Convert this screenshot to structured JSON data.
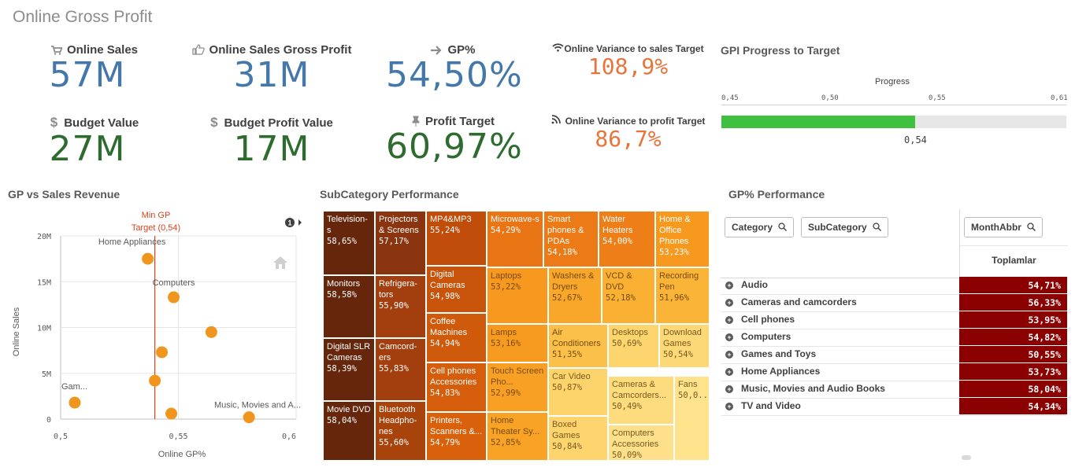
{
  "page_title": "Online Gross Profit",
  "kpis": [
    {
      "label": "Online Sales",
      "value": "57M",
      "icon": "cart-icon",
      "color": "#4477aa"
    },
    {
      "label": "Online Sales Gross Profit",
      "value": "31M",
      "icon": "thumbs-up-icon",
      "color": "#4477aa"
    },
    {
      "label": "GP%",
      "value": "54,50%",
      "icon": "arrow-right-icon",
      "color": "#4477aa"
    },
    {
      "label": "Budget Value",
      "value": "27M",
      "icon": "dollar-icon",
      "color": "#2e6b2e"
    },
    {
      "label": "Budget Profit Value",
      "value": "17M",
      "icon": "dollar-icon",
      "color": "#2e6b2e"
    },
    {
      "label": "Profit Target",
      "value": "60,97%",
      "icon": "pin-icon",
      "color": "#2e6b2e"
    }
  ],
  "variance": [
    {
      "label": "Online Variance to sales Target",
      "value": "108,9%",
      "icon": "wifi-icon"
    },
    {
      "label": "Online Variance to profit Target",
      "value": "86,7%",
      "icon": "rss-icon"
    }
  ],
  "gpi": {
    "title": "GPI Progress to Target",
    "legend": "Progress",
    "ticks": [
      "0,45",
      "0,50",
      "0,55",
      "0,61"
    ],
    "range": [
      0.45,
      0.61
    ],
    "value": 0.54,
    "value_label": "0,54",
    "bar_color": "#40c040"
  },
  "scatter": {
    "title": "GP vs Sales Revenue",
    "ref_line_label_1": "Min GP",
    "ref_line_label_2": "Target (0,54)",
    "info_badge": "1",
    "x_axis_title": "Online GP%",
    "y_axis_title": "Online Sales",
    "x_ticks": [
      "0,5",
      "0,55",
      "0,6"
    ],
    "y_ticks": [
      "0",
      "5M",
      "10M",
      "15M",
      "20M"
    ]
  },
  "chart_data": {
    "type": "scatter",
    "title": "GP vs Sales Revenue",
    "xlabel": "Online GP%",
    "ylabel": "Online Sales",
    "xlim": [
      0.5,
      0.6
    ],
    "ylim": [
      0,
      20000000
    ],
    "reference_line": {
      "x": 0.54,
      "label": "Min GP Target (0,54)"
    },
    "points": [
      {
        "label": "Home Appliances",
        "x": 0.537,
        "y": 17500000
      },
      {
        "label": "Computers",
        "x": 0.548,
        "y": 13300000
      },
      {
        "label": "",
        "x": 0.564,
        "y": 9500000
      },
      {
        "label": "",
        "x": 0.543,
        "y": 7300000
      },
      {
        "label": "Gam...",
        "x": 0.506,
        "y": 1800000
      },
      {
        "label": "",
        "x": 0.54,
        "y": 4200000
      },
      {
        "label": "",
        "x": 0.547,
        "y": 600000
      },
      {
        "label": "Music, Movies and A...",
        "x": 0.58,
        "y": 200000
      }
    ],
    "point_color": "#f0961e"
  },
  "treemap": {
    "title": "SubCategory Performance",
    "cells": [
      {
        "label": "Television-s",
        "value": "58,65%",
        "bg": "#66260c",
        "fg": "#ffffff"
      },
      {
        "label": "Monitors",
        "value": "58,58%",
        "bg": "#66260c",
        "fg": "#ffffff"
      },
      {
        "label": "Digital SLR Cameras",
        "value": "58,39%",
        "bg": "#66260c",
        "fg": "#ffffff"
      },
      {
        "label": "Movie DVD",
        "value": "58,04%",
        "bg": "#66260c",
        "fg": "#ffffff"
      },
      {
        "label": "Projectors & Screens",
        "value": "57,17%",
        "bg": "#8a3410",
        "fg": "#ffffff"
      },
      {
        "label": "Refrigera-tors",
        "value": "55,90%",
        "bg": "#a33f0e",
        "fg": "#ffffff"
      },
      {
        "label": "Camcord-ers",
        "value": "55,83%",
        "bg": "#a33f0e",
        "fg": "#ffffff"
      },
      {
        "label": "Bluetooth Headpho-nes",
        "value": "55,60%",
        "bg": "#a8430c",
        "fg": "#ffffff"
      },
      {
        "label": "MP4&MP3",
        "value": "55,24%",
        "bg": "#c04e0a",
        "fg": "#ffffff"
      },
      {
        "label": "Digital Cameras",
        "value": "54,98%",
        "bg": "#c8530a",
        "fg": "#ffffff"
      },
      {
        "label": "Coffee Machines",
        "value": "54,94%",
        "bg": "#d05a0b",
        "fg": "#ffffff"
      },
      {
        "label": "Cell phones Accessories",
        "value": "54,83%",
        "bg": "#d65d0b",
        "fg": "#ffffff"
      },
      {
        "label": "Printers, Scanners &...",
        "value": "54,79%",
        "bg": "#da610c",
        "fg": "#ffffff"
      },
      {
        "label": "Microwave-s",
        "value": "54,29%",
        "bg": "#ea7514",
        "fg": "#ffffff"
      },
      {
        "label": "Smart phones & PDAs",
        "value": "54,18%",
        "bg": "#ec7a16",
        "fg": "#ffffff"
      },
      {
        "label": "Water Heaters",
        "value": "54,00%",
        "bg": "#ee7e17",
        "fg": "#ffffff"
      },
      {
        "label": "Home & Office Phones",
        "value": "53,23%",
        "bg": "#f7981f",
        "fg": "#ffffff"
      },
      {
        "label": "Laptops",
        "value": "53,22%",
        "bg": "#f7981f",
        "fg": "#7a4a10"
      },
      {
        "label": "Lamps",
        "value": "53,16%",
        "bg": "#f79a20",
        "fg": "#7a4a10"
      },
      {
        "label": "Touch Screen Pho...",
        "value": "52,99%",
        "bg": "#f8a024",
        "fg": "#7a4a10"
      },
      {
        "label": "Home Theater Sy...",
        "value": "52,85%",
        "bg": "#f8a226",
        "fg": "#7a4a10"
      },
      {
        "label": "Washers & Dryers",
        "value": "52,67%",
        "bg": "#f9a72a",
        "fg": "#7a4a10"
      },
      {
        "label": "VCD & DVD",
        "value": "52,18%",
        "bg": "#f9b033",
        "fg": "#7a4a10"
      },
      {
        "label": "Recording Pen",
        "value": "51,96%",
        "bg": "#fab437",
        "fg": "#7a4a10"
      },
      {
        "label": "Air Conditioners",
        "value": "51,35%",
        "bg": "#fbc04a",
        "fg": "#7a4a10"
      },
      {
        "label": "Desktops",
        "value": "50,69%",
        "bg": "#fdd56f",
        "fg": "#7a5a20"
      },
      {
        "label": "Download Games",
        "value": "50,54%",
        "bg": "#fdd876",
        "fg": "#7a5a20"
      },
      {
        "label": "Car Video",
        "value": "50,87%",
        "bg": "#fdd36b",
        "fg": "#7a5a20"
      },
      {
        "label": "Cameras & Camcorders...",
        "value": "50,49%",
        "bg": "#fddc7e",
        "fg": "#7a5a20"
      },
      {
        "label": "Fans",
        "value": "50,0...",
        "bg": "#fee28c",
        "fg": "#7a5a20"
      },
      {
        "label": "Boxed Games",
        "value": "50,84%",
        "bg": "#fdd46d",
        "fg": "#7a5a20"
      },
      {
        "label": "Computers Accessories",
        "value": "50,09%",
        "bg": "#fee08a",
        "fg": "#7a5a20"
      }
    ]
  },
  "pivot": {
    "title": "GP% Performance",
    "chips": [
      "Category",
      "SubCategory",
      "MonthAbbr"
    ],
    "total_header": "Toplamlar",
    "rows": [
      {
        "name": "Audio",
        "value": "54,71%"
      },
      {
        "name": "Cameras and camcorders",
        "value": "56,33%"
      },
      {
        "name": "Cell phones",
        "value": "53,95%"
      },
      {
        "name": "Computers",
        "value": "54,82%"
      },
      {
        "name": "Games and Toys",
        "value": "50,55%"
      },
      {
        "name": "Home Appliances",
        "value": "53,73%"
      },
      {
        "name": "Music, Movies and Audio Books",
        "value": "58,04%"
      },
      {
        "name": "TV and Video",
        "value": "54,34%"
      }
    ]
  }
}
